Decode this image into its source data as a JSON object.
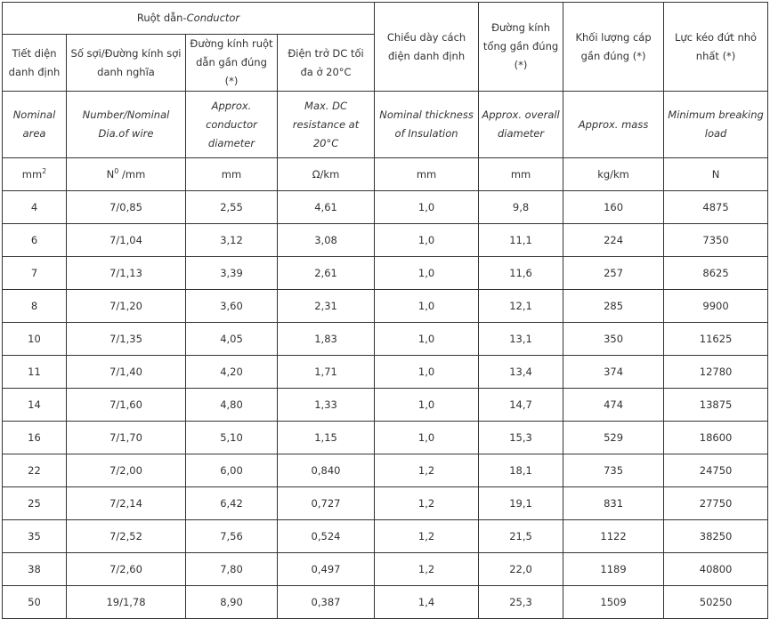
{
  "header": {
    "conductor_group_vi": "Ruột dẫn-",
    "conductor_group_en": "Conductor",
    "columns": [
      {
        "vi": "Tiết diện danh định",
        "en": "Nominal area",
        "unit_base": "mm",
        "unit_sup": "2"
      },
      {
        "vi": "Số sợi/Đường kính sợi danh nghĩa",
        "en": "Number/Nominal Dia.of wire",
        "unit_base": "N",
        "unit_sup": "0",
        "unit_tail": " /mm"
      },
      {
        "vi": "Đường kính ruột dẫn gần đúng (*)",
        "en": "Approx. conductor diameter",
        "unit": "mm"
      },
      {
        "vi": "Điện trở DC tối đa ở 20°C",
        "en": "Max. DC resistance at 20°C",
        "unit": "Ω/km"
      },
      {
        "vi": "Chiều dày cách điện danh định",
        "en": "Nominal thickness of Insulation",
        "unit": "mm"
      },
      {
        "vi": "Đường kính tổng gần đúng (*)",
        "en": "Approx. overall diameter",
        "unit": "mm"
      },
      {
        "vi": "Khối lượng cáp gần đúng (*)",
        "en": "Approx. mass",
        "unit": "kg/km"
      },
      {
        "vi": "Lực kéo đứt nhỏ nhất (*)",
        "en": "Minimum breaking load",
        "unit": "N"
      }
    ]
  },
  "rows": [
    [
      "4",
      "7/0,85",
      "2,55",
      "4,61",
      "1,0",
      "9,8",
      "160",
      "4875"
    ],
    [
      "6",
      "7/1,04",
      "3,12",
      "3,08",
      "1,0",
      "11,1",
      "224",
      "7350"
    ],
    [
      "7",
      "7/1,13",
      "3,39",
      "2,61",
      "1,0",
      "11,6",
      "257",
      "8625"
    ],
    [
      "8",
      "7/1,20",
      "3,60",
      "2,31",
      "1,0",
      "12,1",
      "285",
      "9900"
    ],
    [
      "10",
      "7/1,35",
      "4,05",
      "1,83",
      "1,0",
      "13,1",
      "350",
      "11625"
    ],
    [
      "11",
      "7/1,40",
      "4,20",
      "1,71",
      "1,0",
      "13,4",
      "374",
      "12780"
    ],
    [
      "14",
      "7/1,60",
      "4,80",
      "1,33",
      "1,0",
      "14,7",
      "474",
      "13875"
    ],
    [
      "16",
      "7/1,70",
      "5,10",
      "1,15",
      "1,0",
      "15,3",
      "529",
      "18600"
    ],
    [
      "22",
      "7/2,00",
      "6,00",
      "0,840",
      "1,2",
      "18,1",
      "735",
      "24750"
    ],
    [
      "25",
      "7/2,14",
      "6,42",
      "0,727",
      "1,2",
      "19,1",
      "831",
      "27750"
    ],
    [
      "35",
      "7/2,52",
      "7,56",
      "0,524",
      "1,2",
      "21,5",
      "1122",
      "38250"
    ],
    [
      "38",
      "7/2,60",
      "7,80",
      "0,497",
      "1,2",
      "22,0",
      "1189",
      "40800"
    ],
    [
      "50",
      "19/1,78",
      "8,90",
      "0,387",
      "1,4",
      "25,3",
      "1509",
      "50250"
    ]
  ]
}
